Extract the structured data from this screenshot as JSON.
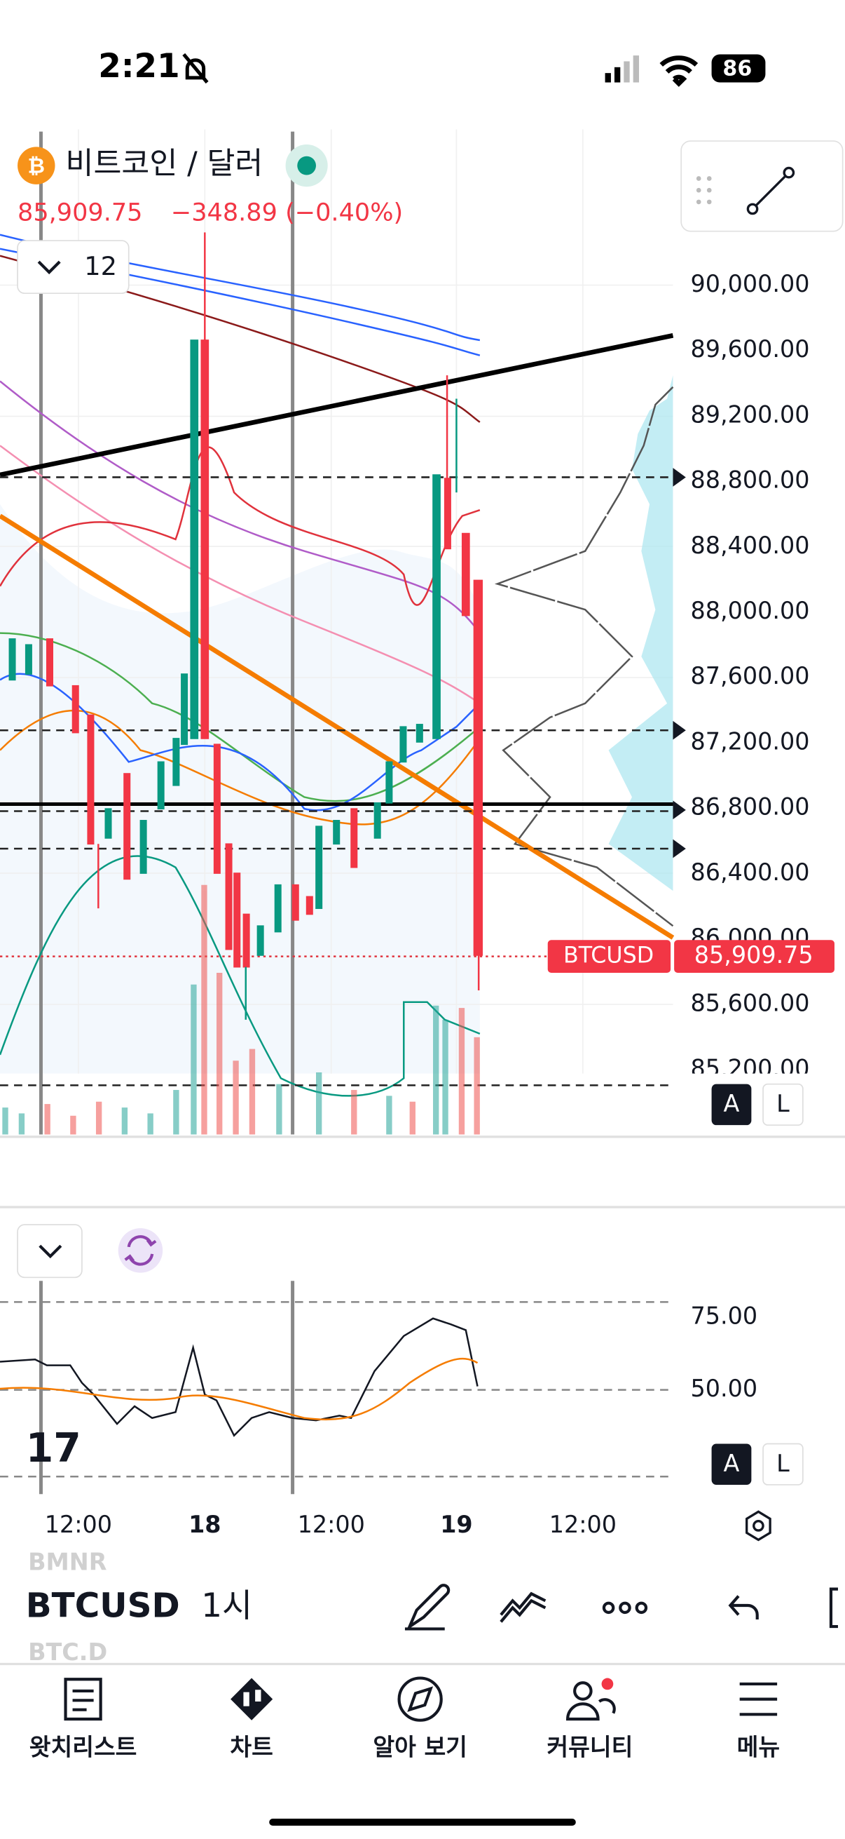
{
  "status_bar": {
    "time": "2:21",
    "battery": "86"
  },
  "header": {
    "title": "비트코인 / 달러",
    "price": "85,909.75",
    "change": "−348.89 (−0.40%)",
    "interval": "12"
  },
  "price_axis": {
    "labels": [
      "90,000.00",
      "89,600.00",
      "89,200.00",
      "88,800.00",
      "88,400.00",
      "88,000.00",
      "87,600.00",
      "87,200.00",
      "86,800.00",
      "86,400.00",
      "86,000.00",
      "85,600.00",
      "85,200.00"
    ],
    "symbol_tag": "BTCUSD",
    "last_price": "85,909.75"
  },
  "scale_buttons": [
    "A",
    "L"
  ],
  "oscillator_axis": {
    "labels": [
      "75.00",
      "50.00"
    ]
  },
  "time_axis": {
    "labels": [
      "12:00",
      "18",
      "12:00",
      "19",
      "12:00"
    ]
  },
  "toolbar": {
    "prev_symbol": "BMNR",
    "symbol": "BTCUSD",
    "interval": "1시",
    "next_symbol": "BTC.D"
  },
  "tab_bar": {
    "tabs": [
      "왓치리스트",
      "차트",
      "알아 보기",
      "커뮤니티",
      "메뉴"
    ]
  }
}
